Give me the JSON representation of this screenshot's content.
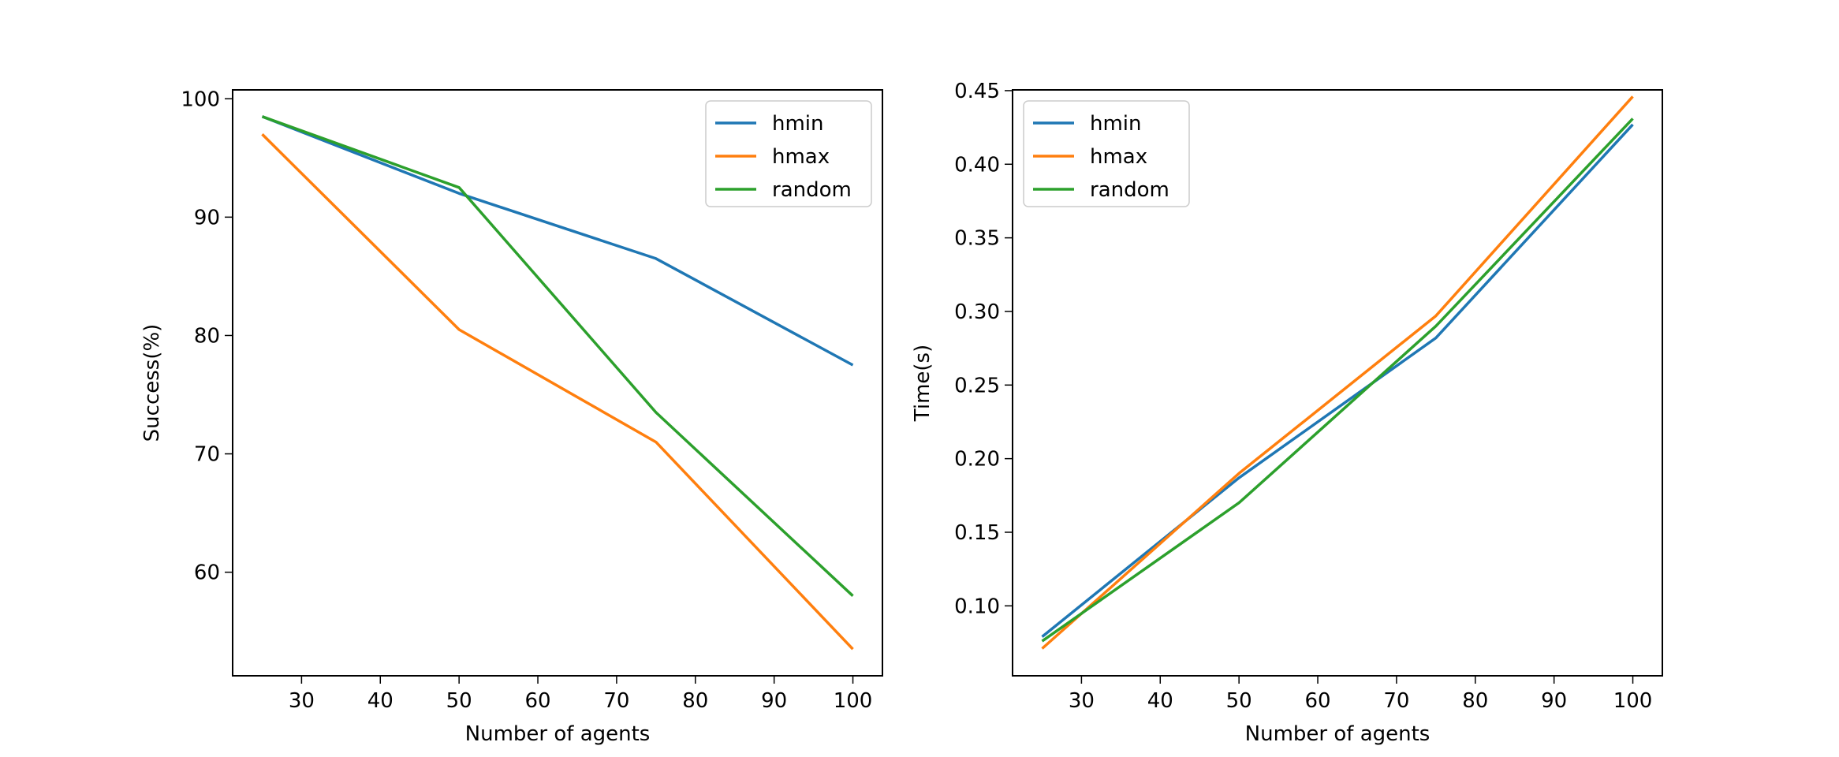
{
  "chart_data": [
    {
      "type": "line",
      "xlabel": "Number of agents",
      "ylabel": "Success(%)",
      "x": [
        25,
        50,
        75,
        100
      ],
      "xlim": [
        21.25,
        103.75
      ],
      "ylim": [
        51.25,
        100.75
      ],
      "xticks": [
        30,
        40,
        50,
        60,
        70,
        80,
        90,
        100
      ],
      "yticks": [
        60,
        70,
        80,
        90,
        100
      ],
      "ytick_labels": [
        "60",
        "70",
        "80",
        "90",
        "100"
      ],
      "legend_position": "top-right",
      "series": [
        {
          "name": "hmin",
          "color": "#1f77b4",
          "values": [
            98.5,
            92.0,
            86.5,
            77.5
          ]
        },
        {
          "name": "hmax",
          "color": "#ff7f0e",
          "values": [
            97.0,
            80.5,
            71.0,
            53.5
          ]
        },
        {
          "name": "random",
          "color": "#2ca02c",
          "values": [
            98.5,
            92.5,
            73.5,
            58.0
          ]
        }
      ]
    },
    {
      "type": "line",
      "xlabel": "Number of agents",
      "ylabel": "Time(s)",
      "x": [
        25,
        50,
        75,
        100
      ],
      "xlim": [
        21.25,
        103.75
      ],
      "ylim": [
        0.0525,
        0.4505
      ],
      "xticks": [
        30,
        40,
        50,
        60,
        70,
        80,
        90,
        100
      ],
      "yticks": [
        0.1,
        0.15,
        0.2,
        0.25,
        0.3,
        0.35,
        0.4,
        0.45
      ],
      "ytick_labels": [
        "0.10",
        "0.15",
        "0.20",
        "0.25",
        "0.30",
        "0.35",
        "0.40",
        "0.45"
      ],
      "legend_position": "top-left",
      "series": [
        {
          "name": "hmin",
          "color": "#1f77b4",
          "values": [
            0.079,
            0.187,
            0.282,
            0.427
          ]
        },
        {
          "name": "hmax",
          "color": "#ff7f0e",
          "values": [
            0.071,
            0.19,
            0.297,
            0.446
          ]
        },
        {
          "name": "random",
          "color": "#2ca02c",
          "values": [
            0.076,
            0.17,
            0.29,
            0.431
          ]
        }
      ]
    }
  ]
}
